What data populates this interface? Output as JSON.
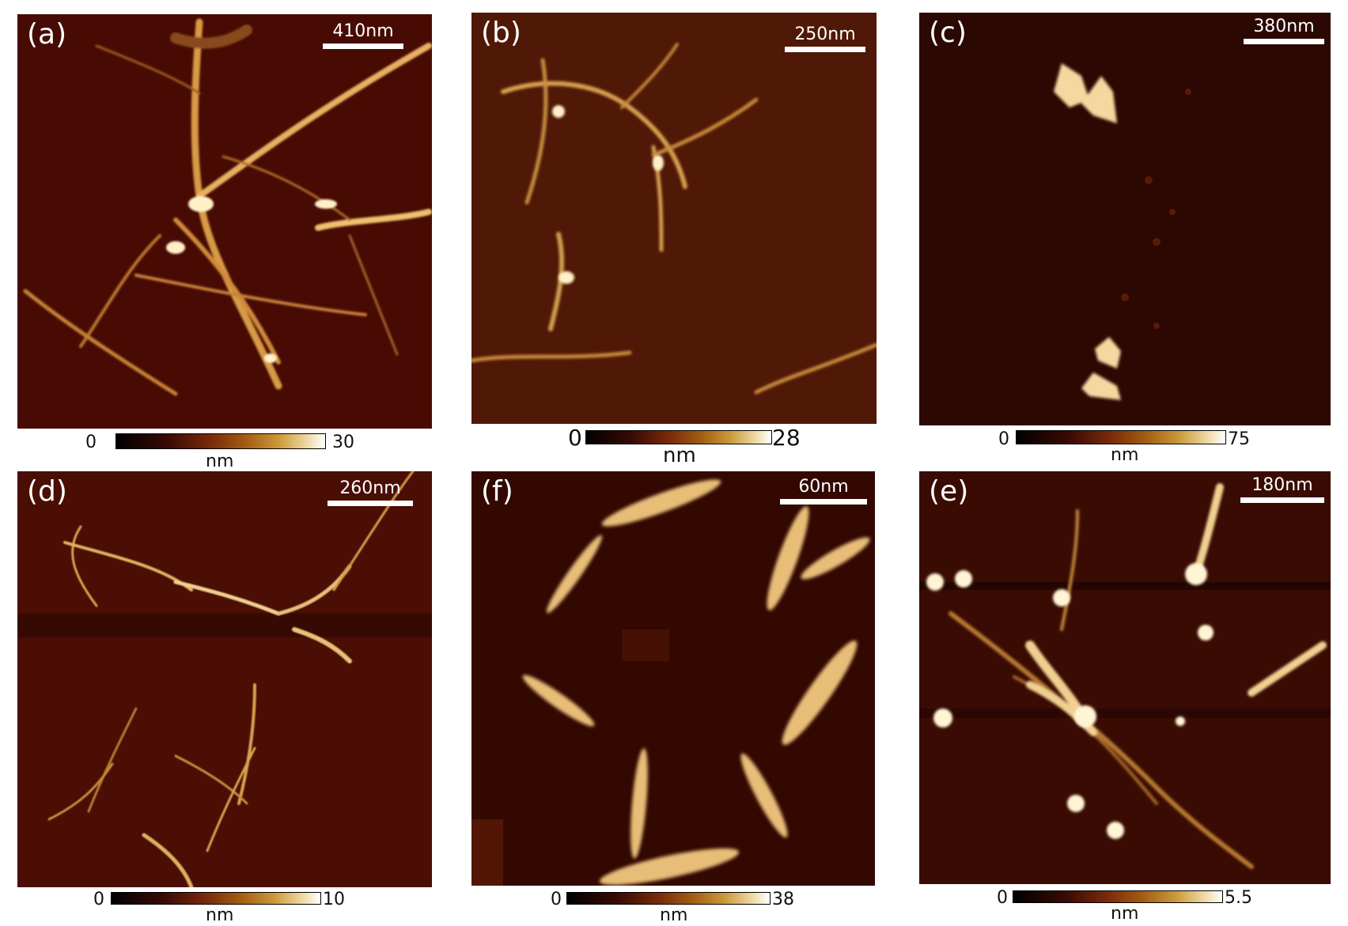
{
  "colors": {
    "substrate": "#3e0902",
    "highlight": "#fff2cc",
    "fiber": "#e2a84a"
  },
  "panels": [
    {
      "label": "(a)",
      "scale": "410nm",
      "cmin": "0",
      "cmax": "30",
      "unit": "nm"
    },
    {
      "label": "(b)",
      "scale": "250nm",
      "cmin": "0",
      "cmax": "28",
      "unit": "nm"
    },
    {
      "label": "(c)",
      "scale": "380nm",
      "cmin": "0",
      "cmax": "75",
      "unit": "nm"
    },
    {
      "label": "(d)",
      "scale": "260nm",
      "cmin": "0",
      "cmax": "10",
      "unit": "nm"
    },
    {
      "label": "(f)",
      "scale": "60nm",
      "cmin": "0",
      "cmax": "38",
      "unit": "nm"
    },
    {
      "label": "(e)",
      "scale": "180nm",
      "cmin": "0",
      "cmax": "5.5",
      "unit": "nm"
    }
  ]
}
